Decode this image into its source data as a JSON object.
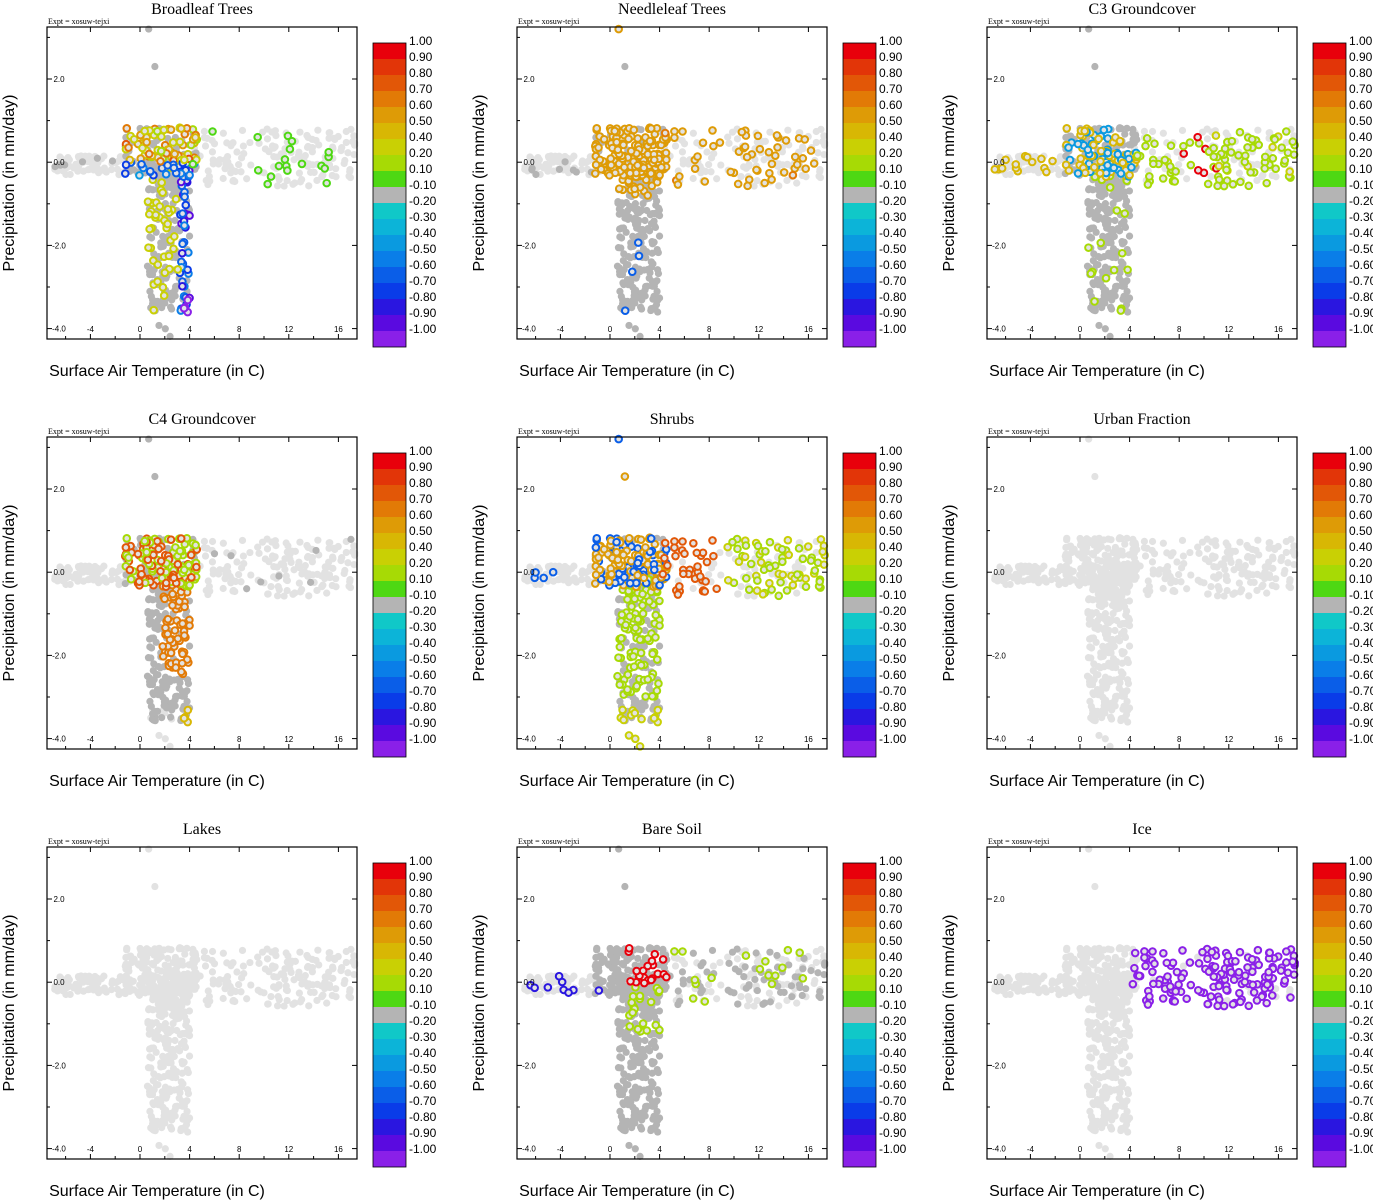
{
  "figure": {
    "experiment_label": "Expt = xosuw-tejxi"
  },
  "chart_data": {
    "type": "scatter",
    "xlabel": "Surface Air Temperature (in C)",
    "ylabel": "Precipitation (in mm/day)",
    "xlim": [
      -7.5,
      17.5
    ],
    "ylim": [
      -4.25,
      3.25
    ],
    "xticks": [
      "-4",
      "0",
      "4",
      "8",
      "12",
      "16"
    ],
    "yticks": [
      "2.0",
      "0.0",
      "-2.0",
      "-4.0"
    ],
    "colorbar": {
      "labels": [
        "1.00",
        "0.90",
        "0.80",
        "0.70",
        "0.60",
        "0.50",
        "0.40",
        "0.20",
        "0.10",
        "-0.10",
        "-0.20",
        "-0.30",
        "-0.40",
        "-0.50",
        "-0.60",
        "-0.70",
        "-0.80",
        "-0.90",
        "-1.00"
      ],
      "colors": [
        "#e8000b",
        "#e23508",
        "#e25707",
        "#e27a06",
        "#de9b06",
        "#d8b704",
        "#c9d004",
        "#a7da05",
        "#4ed813",
        "#b4b4b4",
        "#10c8c8",
        "#0cb4d8",
        "#0a9ae0",
        "#0a7ee8",
        "#0a5ee8",
        "#0a3ce8",
        "#2a16e0",
        "#5a0ae0",
        "#8a20e8"
      ]
    },
    "panels": [
      {
        "title": "Broadleaf Trees",
        "mode": "broadleaf"
      },
      {
        "title": "Needleleaf Trees",
        "mode": "needleleaf"
      },
      {
        "title": "C3 Groundcover",
        "mode": "c3"
      },
      {
        "title": "C4 Groundcover",
        "mode": "c4"
      },
      {
        "title": "Shrubs",
        "mode": "shrubs"
      },
      {
        "title": "Urban Fraction",
        "mode": "none"
      },
      {
        "title": "Lakes",
        "mode": "none"
      },
      {
        "title": "Bare Soil",
        "mode": "baresoil"
      },
      {
        "title": "Ice",
        "mode": "ice"
      }
    ]
  }
}
